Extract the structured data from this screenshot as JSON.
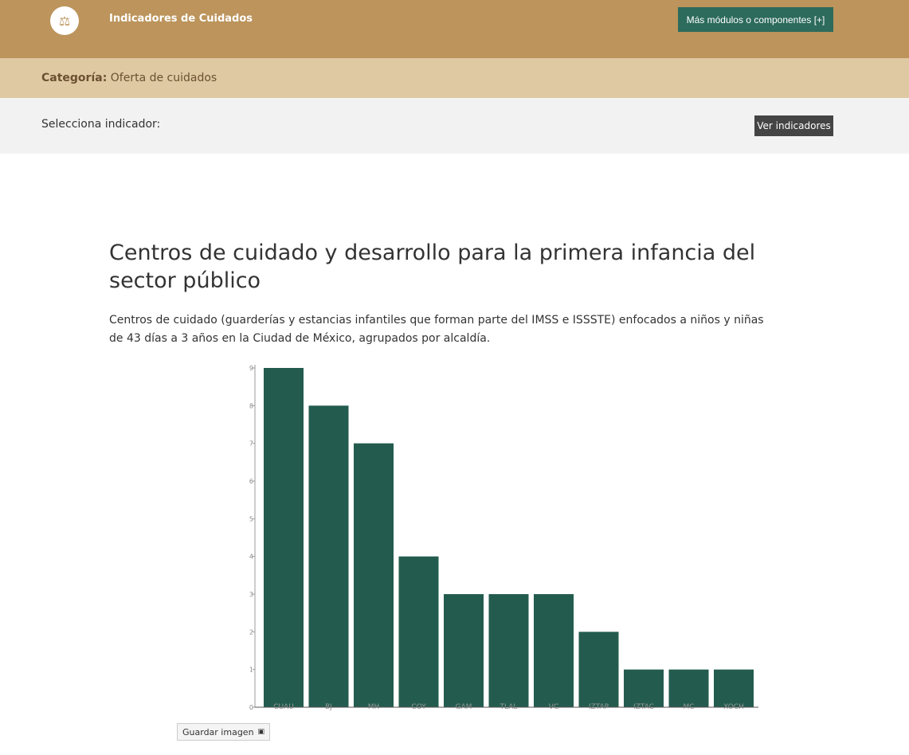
{
  "header": {
    "title": "Indicadores de Cuidados",
    "more_button": "Más módulos o componentes [+]",
    "logo_icon": "people-scale-icon"
  },
  "category": {
    "label": "Categoría:",
    "value": "Oferta de cuidados"
  },
  "selector": {
    "label": "Selecciona indicador:",
    "selected": "Centros de cuidado y desarrollo para la primera infancia del sector público",
    "button": "Ver indicadores"
  },
  "main": {
    "title": "Centros de cuidado y desarrollo para la primera infancia del sector público",
    "description": "Centros de cuidado (guarderías y estancias infantiles que forman parte del IMSS e ISSSTE) enfocados a niños y niñas de 43 días a 3 años en la Ciudad de México, agrupados por alcaldía.",
    "save_button": "Guardar imagen"
  },
  "colors": {
    "header": "#bc945c",
    "category_bar": "#dfc9a3",
    "bar": "#235c4e",
    "accent_button": "#2d6b5c"
  },
  "chart_data": {
    "type": "bar",
    "categories": [
      "CUAU",
      "BJ",
      "MH",
      "COY",
      "GAM",
      "TLAL",
      "VC",
      "IZTAP",
      "IZTAC",
      "MC",
      "XOCH"
    ],
    "values": [
      9,
      8,
      7,
      4,
      3,
      3,
      3,
      2,
      1,
      1,
      1
    ],
    "ylim": [
      0,
      9
    ],
    "yticks": [
      0,
      1,
      2,
      3,
      4,
      5,
      6,
      7,
      8,
      9
    ],
    "grid": false
  }
}
